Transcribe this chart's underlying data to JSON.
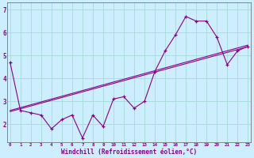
{
  "xlabel": "Windchill (Refroidissement éolien,°C)",
  "bg_color": "#cceeff",
  "line_color": "#880088",
  "grid_color": "#aadddd",
  "hours": [
    0,
    1,
    2,
    3,
    4,
    5,
    6,
    7,
    8,
    9,
    10,
    11,
    12,
    13,
    14,
    15,
    16,
    17,
    18,
    19,
    20,
    21,
    22,
    23
  ],
  "windchill": [
    4.7,
    2.6,
    2.5,
    2.4,
    1.8,
    2.2,
    2.4,
    1.4,
    2.4,
    1.9,
    3.1,
    3.2,
    2.7,
    3.0,
    4.3,
    5.2,
    5.9,
    6.7,
    6.5,
    6.5,
    5.8,
    4.6,
    5.2,
    5.4
  ],
  "trend1_x": [
    0,
    23
  ],
  "trend1_y": [
    2.55,
    5.38
  ],
  "trend2_x": [
    0,
    23
  ],
  "trend2_y": [
    2.6,
    5.45
  ],
  "xlim": [
    -0.3,
    23.3
  ],
  "ylim": [
    1.2,
    7.3
  ],
  "yticks": [
    2,
    3,
    4,
    5,
    6,
    7
  ],
  "xticks": [
    0,
    1,
    2,
    3,
    4,
    5,
    6,
    7,
    8,
    9,
    10,
    11,
    12,
    13,
    14,
    15,
    16,
    17,
    18,
    19,
    20,
    21,
    22,
    23
  ]
}
